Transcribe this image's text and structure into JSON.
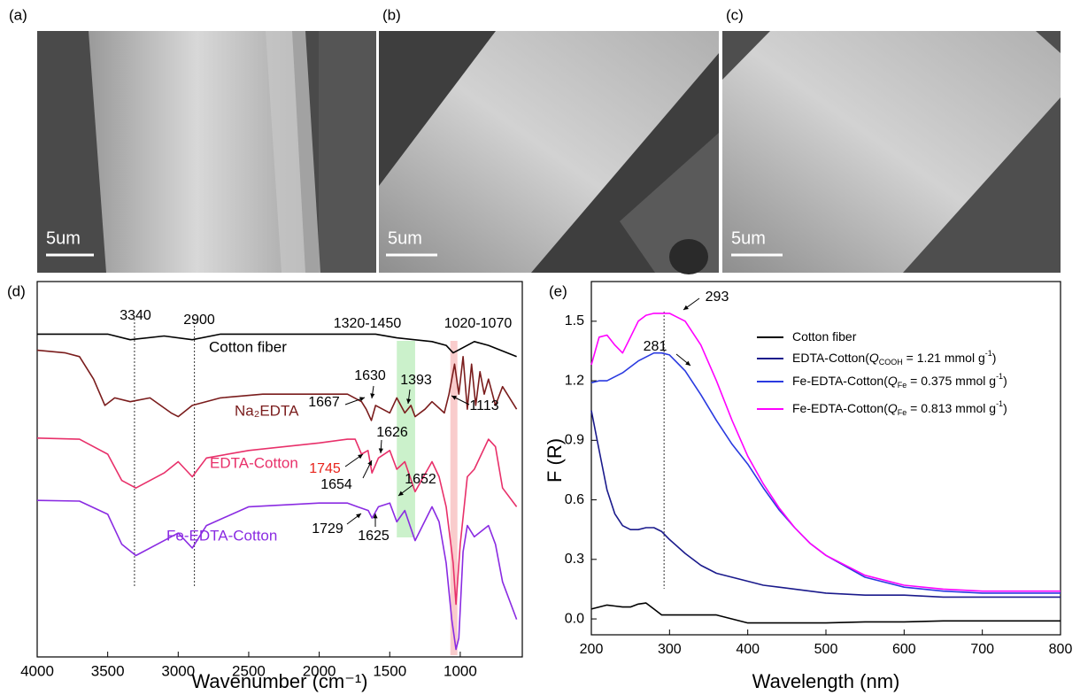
{
  "panels": [
    {
      "label": "(a)",
      "scale": "5um"
    },
    {
      "label": "(b)",
      "scale": "5um"
    },
    {
      "label": "(c)",
      "scale": "5um"
    }
  ],
  "chart_data": [
    {
      "type": "line",
      "label": "(d)",
      "x_label": "Wavenumber (cm⁻¹)",
      "xlim": [
        4000,
        560
      ],
      "xticks": [
        4000,
        3500,
        3000,
        2500,
        2000,
        1500,
        1000
      ],
      "ylim": [
        0,
        100
      ],
      "series": [
        {
          "name": "Cotton fiber",
          "color": "#000000",
          "x": [
            4000,
            3500,
            3340,
            3100,
            2900,
            2700,
            1600,
            1450,
            1200,
            1100,
            1050,
            1000,
            900,
            800,
            600
          ],
          "values": [
            86,
            86,
            84.5,
            85.5,
            84.5,
            86,
            86,
            85,
            84,
            83,
            81,
            82,
            84,
            83,
            80
          ]
        },
        {
          "name": "Na₂EDTA",
          "color": "#7a1c1c",
          "x": [
            4000,
            3800,
            3700,
            3600,
            3520,
            3450,
            3340,
            3200,
            3050,
            3000,
            2900,
            2700,
            2400,
            2000,
            1800,
            1700,
            1667,
            1630,
            1600,
            1500,
            1450,
            1393,
            1350,
            1320,
            1250,
            1200,
            1113,
            1080,
            1040,
            1010,
            980,
            950,
            920,
            890,
            860,
            830,
            800,
            750,
            700,
            600
          ],
          "values": [
            81.7,
            81,
            80,
            74,
            67,
            69,
            68,
            69,
            65,
            64,
            67,
            69,
            70,
            70,
            70,
            68,
            66,
            63,
            67,
            65,
            69,
            65,
            67,
            64,
            66,
            68,
            65,
            70,
            78,
            70,
            80,
            66,
            78,
            67,
            76,
            70,
            74,
            67,
            72,
            66
          ]
        },
        {
          "name": "EDTA-Cotton",
          "color": "#e8306a",
          "x": [
            4000,
            3700,
            3500,
            3400,
            3300,
            3100,
            3000,
            2900,
            2800,
            2500,
            2000,
            1800,
            1745,
            1700,
            1654,
            1626,
            1580,
            1500,
            1450,
            1393,
            1320,
            1200,
            1150,
            1100,
            1050,
            1030,
            1000,
            950,
            900,
            800,
            750,
            700,
            600
          ],
          "values": [
            58.3,
            58,
            54,
            47,
            45,
            49,
            52,
            48,
            53,
            55,
            57,
            58,
            58,
            54,
            55,
            49,
            53,
            55,
            50,
            52,
            44,
            52,
            48,
            40,
            25,
            14,
            30,
            48,
            50,
            58,
            56,
            45,
            40
          ]
        },
        {
          "name": "Fe-EDTA-Cotton",
          "color": "#8a2be2",
          "x": [
            4000,
            3700,
            3500,
            3400,
            3300,
            3100,
            3000,
            2900,
            2800,
            2500,
            2000,
            1800,
            1729,
            1652,
            1625,
            1580,
            1500,
            1450,
            1393,
            1320,
            1200,
            1150,
            1100,
            1060,
            1030,
            1010,
            980,
            950,
            900,
            800,
            750,
            700,
            600
          ],
          "values": [
            41.7,
            41.5,
            38,
            30,
            27,
            31,
            33,
            29,
            35,
            40,
            41,
            41,
            40,
            39,
            37,
            40,
            41,
            36,
            39,
            31,
            40,
            36,
            25,
            10,
            2,
            5,
            28,
            35,
            32,
            35,
            30,
            20,
            10
          ]
        }
      ],
      "annotations": [
        {
          "text": "3340"
        },
        {
          "text": "2900"
        },
        {
          "text": "1320-1450"
        },
        {
          "text": "1020-1070"
        },
        {
          "text": "1630"
        },
        {
          "text": "1393"
        },
        {
          "text": "1667"
        },
        {
          "text": "1113"
        },
        {
          "text": "1626"
        },
        {
          "text": "1745",
          "color": "#e8231b"
        },
        {
          "text": "1654"
        },
        {
          "text": "1652"
        },
        {
          "text": "1729"
        },
        {
          "text": "1625"
        }
      ],
      "vlines": [
        3310,
        2885
      ],
      "bands": [
        {
          "from": 1320,
          "to": 1450,
          "color": "#7ddc7d"
        },
        {
          "from": 1020,
          "to": 1070,
          "color": "#f08080"
        }
      ]
    },
    {
      "type": "line",
      "label": "(e)",
      "x_label": "Wavelength (nm)",
      "y_label": "F (R)",
      "xlim": [
        200,
        800
      ],
      "xticks": [
        200,
        300,
        400,
        500,
        600,
        700,
        800
      ],
      "ylim": [
        -0.08,
        1.7
      ],
      "yticks": [
        {
          "value": 0,
          "label": "0.0"
        },
        0.3,
        0.6,
        0.9,
        1.2,
        1.5
      ],
      "x": [
        200,
        210,
        220,
        230,
        240,
        250,
        260,
        270,
        280,
        290,
        300,
        320,
        340,
        360,
        380,
        400,
        420,
        440,
        460,
        480,
        500,
        550,
        600,
        650,
        700,
        750,
        800
      ],
      "series": [
        {
          "name": [
            [
              "Cotton fiber",
              ""
            ]
          ],
          "color": "#000000",
          "values": [
            0.05,
            0.06,
            0.07,
            0.065,
            0.06,
            0.06,
            0.075,
            0.08,
            0.05,
            0.02,
            0.02,
            0.02,
            0.02,
            0.02,
            0.0,
            -0.02,
            -0.02,
            -0.02,
            -0.02,
            -0.02,
            -0.02,
            -0.015,
            -0.015,
            -0.01,
            -0.01,
            -0.01,
            -0.01
          ]
        },
        {
          "name": [
            [
              "EDTA-Cotton(",
              ""
            ],
            [
              "Q",
              "i"
            ],
            [
              "COOH",
              "sub"
            ],
            [
              " = 1.21 mmol g",
              ""
            ],
            [
              "-1",
              "sup"
            ],
            [
              ")",
              ""
            ]
          ],
          "color": "#1a1a8c",
          "values": [
            1.05,
            0.85,
            0.65,
            0.53,
            0.47,
            0.45,
            0.45,
            0.46,
            0.46,
            0.44,
            0.4,
            0.33,
            0.27,
            0.23,
            0.21,
            0.19,
            0.17,
            0.16,
            0.15,
            0.14,
            0.13,
            0.12,
            0.12,
            0.11,
            0.11,
            0.11,
            0.11
          ]
        },
        {
          "name": [
            [
              "Fe-EDTA-Cotton(",
              ""
            ],
            [
              "Q",
              "i"
            ],
            [
              "Fe",
              "sub"
            ],
            [
              " = 0.375 mmol g",
              ""
            ],
            [
              "-1",
              "sup"
            ],
            [
              ")",
              ""
            ]
          ],
          "color": "#2a3ae0",
          "values": [
            1.19,
            1.2,
            1.2,
            1.22,
            1.24,
            1.27,
            1.3,
            1.32,
            1.34,
            1.34,
            1.33,
            1.25,
            1.13,
            1.0,
            0.88,
            0.78,
            0.66,
            0.55,
            0.46,
            0.38,
            0.32,
            0.21,
            0.16,
            0.14,
            0.13,
            0.13,
            0.13
          ]
        },
        {
          "name": [
            [
              "Fe-EDTA-Cotton(",
              ""
            ],
            [
              "Q",
              "i"
            ],
            [
              "Fe",
              "sub"
            ],
            [
              " = 0.813 mmol g",
              ""
            ],
            [
              "-1",
              "sup"
            ],
            [
              ")",
              ""
            ]
          ],
          "color": "#ff00ff",
          "values": [
            1.28,
            1.42,
            1.43,
            1.38,
            1.34,
            1.42,
            1.5,
            1.53,
            1.54,
            1.54,
            1.54,
            1.5,
            1.38,
            1.2,
            1.0,
            0.82,
            0.68,
            0.56,
            0.46,
            0.38,
            0.32,
            0.22,
            0.17,
            0.15,
            0.14,
            0.14,
            0.14
          ]
        }
      ],
      "annotations": [
        {
          "text": "293"
        },
        {
          "text": "281"
        }
      ],
      "vlines": [
        293
      ]
    }
  ]
}
